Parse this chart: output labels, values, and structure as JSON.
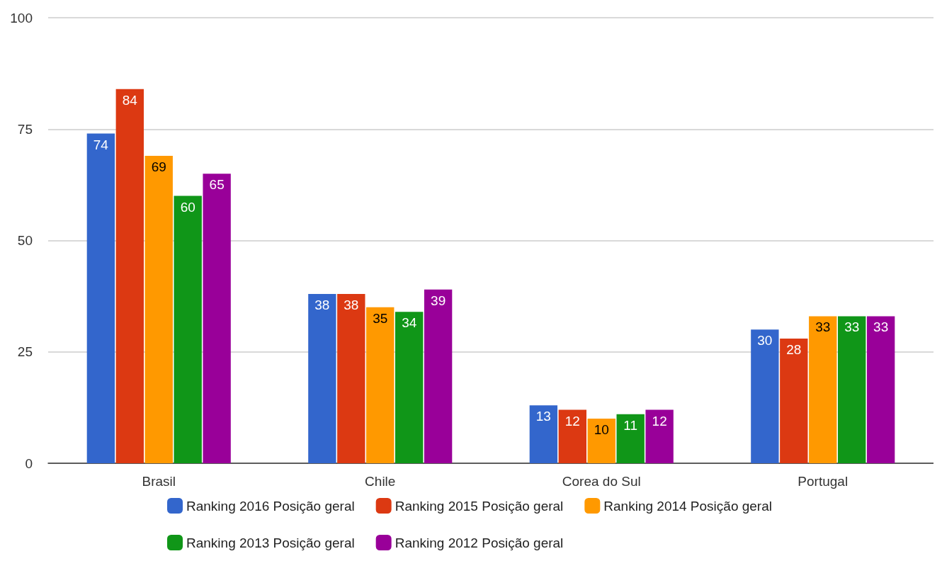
{
  "chart_data": {
    "type": "bar",
    "categories": [
      "Brasil",
      "Chile",
      "Corea do Sul",
      "Portugal"
    ],
    "series": [
      {
        "name": "Ranking 2016 Posição geral",
        "color": "#3366cc",
        "values": [
          74,
          38,
          13,
          30
        ]
      },
      {
        "name": "Ranking 2015 Posição geral",
        "color": "#dc3912",
        "values": [
          84,
          38,
          12,
          28
        ]
      },
      {
        "name": "Ranking 2014 Posição geral",
        "color": "#ff9900",
        "values": [
          69,
          35,
          10,
          33
        ]
      },
      {
        "name": "Ranking 2013 Posição geral",
        "color": "#109618",
        "values": [
          60,
          34,
          11,
          33
        ]
      },
      {
        "name": "Ranking 2012 Posição geral",
        "color": "#990099",
        "values": [
          65,
          39,
          12,
          33
        ]
      }
    ],
    "ylim": [
      0,
      100
    ],
    "yticks": [
      0,
      25,
      50,
      75,
      100
    ],
    "grid": "y",
    "legend": "bottom",
    "data_labels": true
  }
}
